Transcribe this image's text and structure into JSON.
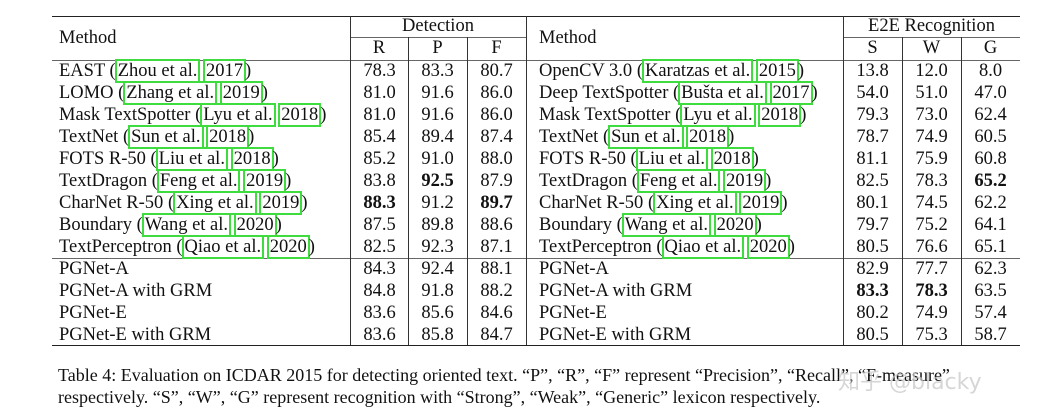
{
  "table": {
    "left_header": {
      "method": "Method",
      "group": "Detection",
      "cols": [
        "R",
        "P",
        "F"
      ]
    },
    "right_header": {
      "method": "Method",
      "group": "E2E Recognition",
      "cols": [
        "S",
        "W",
        "G"
      ]
    },
    "left_rows": [
      {
        "name": "EAST",
        "cite_author": "Zhou et al.",
        "cite_year": "2017",
        "vals": [
          "78.3",
          "83.3",
          "80.7"
        ],
        "bold": [
          false,
          false,
          false
        ]
      },
      {
        "name": "LOMO",
        "cite_author": "Zhang et al.",
        "cite_year": "2019",
        "vals": [
          "81.0",
          "91.6",
          "86.0"
        ],
        "bold": [
          false,
          false,
          false
        ]
      },
      {
        "name": "Mask TextSpotter",
        "cite_author": "Lyu et al.",
        "cite_year": "2018",
        "vals": [
          "81.0",
          "91.6",
          "86.0"
        ],
        "bold": [
          false,
          false,
          false
        ]
      },
      {
        "name": "TextNet",
        "cite_author": "Sun et al.",
        "cite_year": "2018",
        "vals": [
          "85.4",
          "89.4",
          "87.4"
        ],
        "bold": [
          false,
          false,
          false
        ]
      },
      {
        "name": "FOTS R-50",
        "cite_author": "Liu et al.",
        "cite_year": "2018",
        "vals": [
          "85.2",
          "91.0",
          "88.0"
        ],
        "bold": [
          false,
          false,
          false
        ]
      },
      {
        "name": "TextDragon",
        "cite_author": "Feng et al.",
        "cite_year": "2019",
        "vals": [
          "83.8",
          "92.5",
          "87.9"
        ],
        "bold": [
          false,
          true,
          false
        ]
      },
      {
        "name": "CharNet R-50",
        "cite_author": "Xing et al.",
        "cite_year": "2019",
        "vals": [
          "88.3",
          "91.2",
          "89.7"
        ],
        "bold": [
          true,
          false,
          true
        ]
      },
      {
        "name": "Boundary",
        "cite_author": "Wang et al.",
        "cite_year": "2020",
        "vals": [
          "87.5",
          "89.8",
          "88.6"
        ],
        "bold": [
          false,
          false,
          false
        ]
      },
      {
        "name": "TextPerceptron",
        "cite_author": "Qiao et al.",
        "cite_year": "2020",
        "vals": [
          "82.5",
          "92.3",
          "87.1"
        ],
        "bold": [
          false,
          false,
          false
        ]
      },
      {
        "name": "PGNet-A",
        "vals": [
          "84.3",
          "92.4",
          "88.1"
        ],
        "bold": [
          false,
          false,
          false
        ]
      },
      {
        "name": "PGNet-A with GRM",
        "vals": [
          "84.8",
          "91.8",
          "88.2"
        ],
        "bold": [
          false,
          false,
          false
        ]
      },
      {
        "name": "PGNet-E",
        "vals": [
          "83.6",
          "85.6",
          "84.6"
        ],
        "bold": [
          false,
          false,
          false
        ]
      },
      {
        "name": "PGNet-E with GRM",
        "vals": [
          "83.6",
          "85.8",
          "84.7"
        ],
        "bold": [
          false,
          false,
          false
        ]
      }
    ],
    "right_rows": [
      {
        "name": "OpenCV 3.0",
        "cite_author": "Karatzas et al.",
        "cite_year": "2015",
        "vals": [
          "13.8",
          "12.0",
          "8.0"
        ],
        "bold": [
          false,
          false,
          false
        ]
      },
      {
        "name": "Deep TextSpotter",
        "cite_author": "Bušta et al.",
        "cite_year": "2017",
        "vals": [
          "54.0",
          "51.0",
          "47.0"
        ],
        "bold": [
          false,
          false,
          false
        ]
      },
      {
        "name": "Mask TextSpotter",
        "cite_author": "Lyu et al.",
        "cite_year": "2018",
        "vals": [
          "79.3",
          "73.0",
          "62.4"
        ],
        "bold": [
          false,
          false,
          false
        ]
      },
      {
        "name": "TextNet",
        "cite_author": "Sun et al.",
        "cite_year": "2018",
        "vals": [
          "78.7",
          "74.9",
          "60.5"
        ],
        "bold": [
          false,
          false,
          false
        ]
      },
      {
        "name": "FOTS R-50",
        "cite_author": "Liu et al.",
        "cite_year": "2018",
        "vals": [
          "81.1",
          "75.9",
          "60.8"
        ],
        "bold": [
          false,
          false,
          false
        ]
      },
      {
        "name": "TextDragon",
        "cite_author": "Feng et al.",
        "cite_year": "2019",
        "vals": [
          "82.5",
          "78.3",
          "65.2"
        ],
        "bold": [
          false,
          false,
          true
        ]
      },
      {
        "name": "CharNet R-50",
        "cite_author": "Xing et al.",
        "cite_year": "2019",
        "vals": [
          "80.1",
          "74.5",
          "62.2"
        ],
        "bold": [
          false,
          false,
          false
        ]
      },
      {
        "name": "Boundary",
        "cite_author": "Wang et al.",
        "cite_year": "2020",
        "vals": [
          "79.7",
          "75.2",
          "64.1"
        ],
        "bold": [
          false,
          false,
          false
        ]
      },
      {
        "name": "TextPerceptron",
        "cite_author": "Qiao et al.",
        "cite_year": "2020",
        "vals": [
          "80.5",
          "76.6",
          "65.1"
        ],
        "bold": [
          false,
          false,
          false
        ]
      },
      {
        "name": "PGNet-A",
        "vals": [
          "82.9",
          "77.7",
          "62.3"
        ],
        "bold": [
          false,
          false,
          false
        ]
      },
      {
        "name": "PGNet-A with GRM",
        "vals": [
          "83.3",
          "78.3",
          "63.5"
        ],
        "bold": [
          true,
          true,
          false
        ]
      },
      {
        "name": "PGNet-E",
        "vals": [
          "80.2",
          "74.9",
          "57.4"
        ],
        "bold": [
          false,
          false,
          false
        ]
      },
      {
        "name": "PGNet-E with GRM",
        "vals": [
          "80.5",
          "75.3",
          "58.7"
        ],
        "bold": [
          false,
          false,
          false
        ]
      }
    ]
  },
  "caption": {
    "line1": "Table 4: Evaluation on ICDAR 2015 for detecting oriented text. “P”, “R”, “F” represent “Precision”, “Recall”, “F-measure”",
    "line2": "respectively. “S”, “W”, “G” represent recognition with “Strong”, “Weak”, “Generic” lexicon respectively."
  },
  "watermark": "知乎 @blacky"
}
